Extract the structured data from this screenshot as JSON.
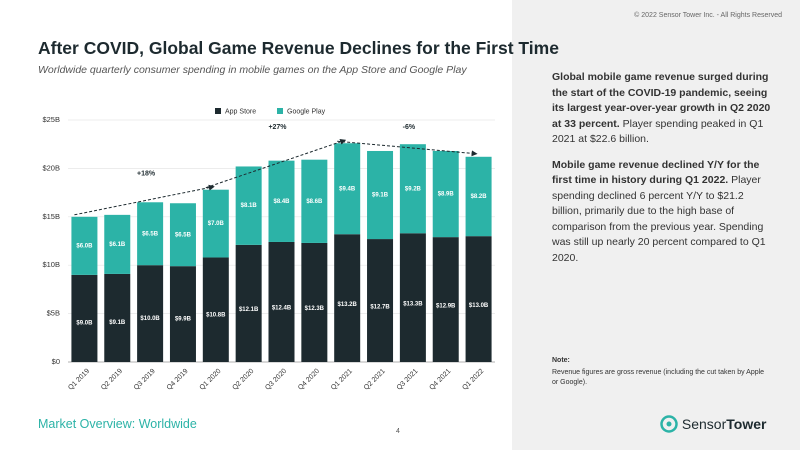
{
  "header": {
    "title": "After COVID, Global Game Revenue Declines for the First Time",
    "subtitle": "Worldwide quarterly consumer spending in mobile games on the App Store and Google Play"
  },
  "copyright": "© 2022 Sensor Tower Inc. - All Rights Reserved",
  "chart_data": {
    "type": "stacked_bar",
    "categories": [
      "Q1 2019",
      "Q2 2019",
      "Q3 2019",
      "Q4 2019",
      "Q1 2020",
      "Q2 2020",
      "Q3 2020",
      "Q4 2020",
      "Q1 2021",
      "Q2 2021",
      "Q3 2021",
      "Q4 2021",
      "Q1 2022"
    ],
    "series": [
      {
        "name": "App Store",
        "color": "#1d2a2f",
        "values": [
          9.0,
          9.1,
          10.0,
          9.9,
          10.8,
          12.1,
          12.4,
          12.3,
          13.2,
          12.7,
          13.3,
          12.9,
          13.0
        ],
        "value_labels": [
          "$9.0B",
          "$9.1B",
          "$10.0B",
          "$9.9B",
          "$10.8B",
          "$12.1B",
          "$12.4B",
          "$12.3B",
          "$13.2B",
          "$12.7B",
          "$13.3B",
          "$12.9B",
          "$13.0B"
        ]
      },
      {
        "name": "Google Play",
        "color": "#2cb3a7",
        "values": [
          6.0,
          6.1,
          6.5,
          6.5,
          7.0,
          8.1,
          8.4,
          8.6,
          9.4,
          9.1,
          9.2,
          8.9,
          8.2
        ],
        "value_labels": [
          "$6.0B",
          "$6.1B",
          "$6.5B",
          "$6.5B",
          "$7.0B",
          "$8.1B",
          "$8.4B",
          "$8.6B",
          "$9.4B",
          "$9.1B",
          "$9.2B",
          "$8.9B",
          "$8.2B"
        ]
      }
    ],
    "ylim": [
      0,
      25
    ],
    "yticks": [
      {
        "value": 0,
        "label": "$0"
      },
      {
        "value": 5,
        "label": "$5B"
      },
      {
        "value": 10,
        "label": "$10B"
      },
      {
        "value": 15,
        "label": "$15B"
      },
      {
        "value": 20,
        "label": "$20B"
      },
      {
        "value": 25,
        "label": "$25B"
      }
    ],
    "annotations": [
      "+18%",
      "+27%",
      "-6%"
    ],
    "watermark": "Sensor Tower"
  },
  "sidebar": {
    "paragraphs": [
      [
        {
          "bold": true,
          "text": "Global mobile game revenue surged during the start of the COVID-19 pandemic, seeing its largest year-over-year growth in Q2 2020 at 33 percent."
        },
        {
          "bold": false,
          "text": " Player spending peaked in Q1 2021 at $22.6 billion."
        }
      ],
      [
        {
          "bold": true,
          "text": "Mobile game revenue declined Y/Y for the first time in history during Q1 2022."
        },
        {
          "bold": false,
          "text": " Player spending declined 6 percent Y/Y to $21.2 billion, primarily due to the high base of comparison from the previous year. Spending was still up nearly 20 percent compared to Q1 2020."
        }
      ]
    ],
    "note_label": "Note:",
    "note": "Revenue figures are gross revenue (including the cut taken by Apple or Google)."
  },
  "footer": {
    "section": "Market Overview: Worldwide",
    "page": 4,
    "logo": [
      "Sensor",
      "Tower"
    ]
  }
}
